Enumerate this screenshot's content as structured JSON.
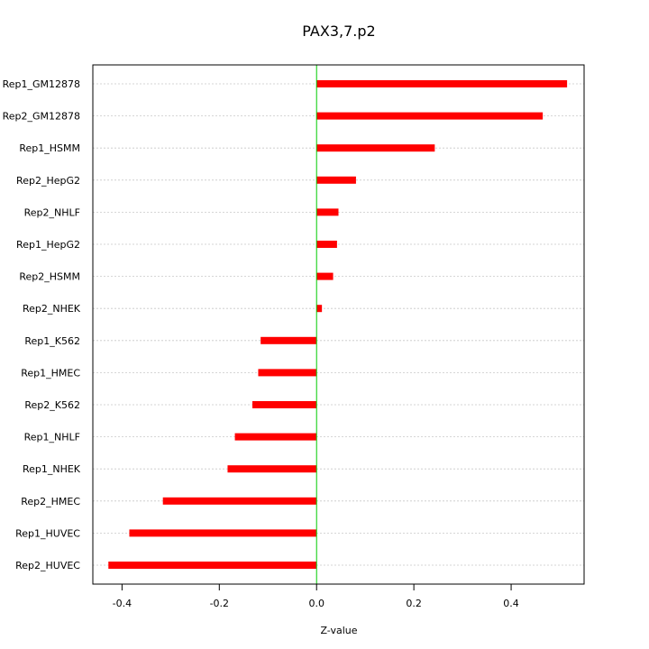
{
  "chart_data": {
    "type": "bar",
    "orientation": "horizontal",
    "title": "PAX3,7.p2",
    "xlabel": "Z-value",
    "ylabel": "",
    "xlim": [
      -0.46,
      0.55
    ],
    "xticks": [
      -0.4,
      -0.2,
      0.0,
      0.2,
      0.4
    ],
    "xtick_labels": [
      "-0.4",
      "-0.2",
      "0.0",
      "0.2",
      "0.4"
    ],
    "grid": "horizontal dotted",
    "zero_line_color": "#00cc00",
    "bar_color": "#ff0000",
    "categories": [
      "Rep1_GM12878",
      "Rep2_GM12878",
      "Rep1_HSMM",
      "Rep2_HepG2",
      "Rep2_NHLF",
      "Rep1_HepG2",
      "Rep2_HSMM",
      "Rep2_NHEK",
      "Rep1_K562",
      "Rep1_HMEC",
      "Rep2_K562",
      "Rep1_NHLF",
      "Rep1_NHEK",
      "Rep2_HMEC",
      "Rep1_HUVEC",
      "Rep2_HUVEC"
    ],
    "values": [
      0.515,
      0.465,
      0.243,
      0.081,
      0.045,
      0.042,
      0.034,
      0.011,
      -0.115,
      -0.12,
      -0.132,
      -0.168,
      -0.183,
      -0.316,
      -0.385,
      -0.428
    ]
  }
}
